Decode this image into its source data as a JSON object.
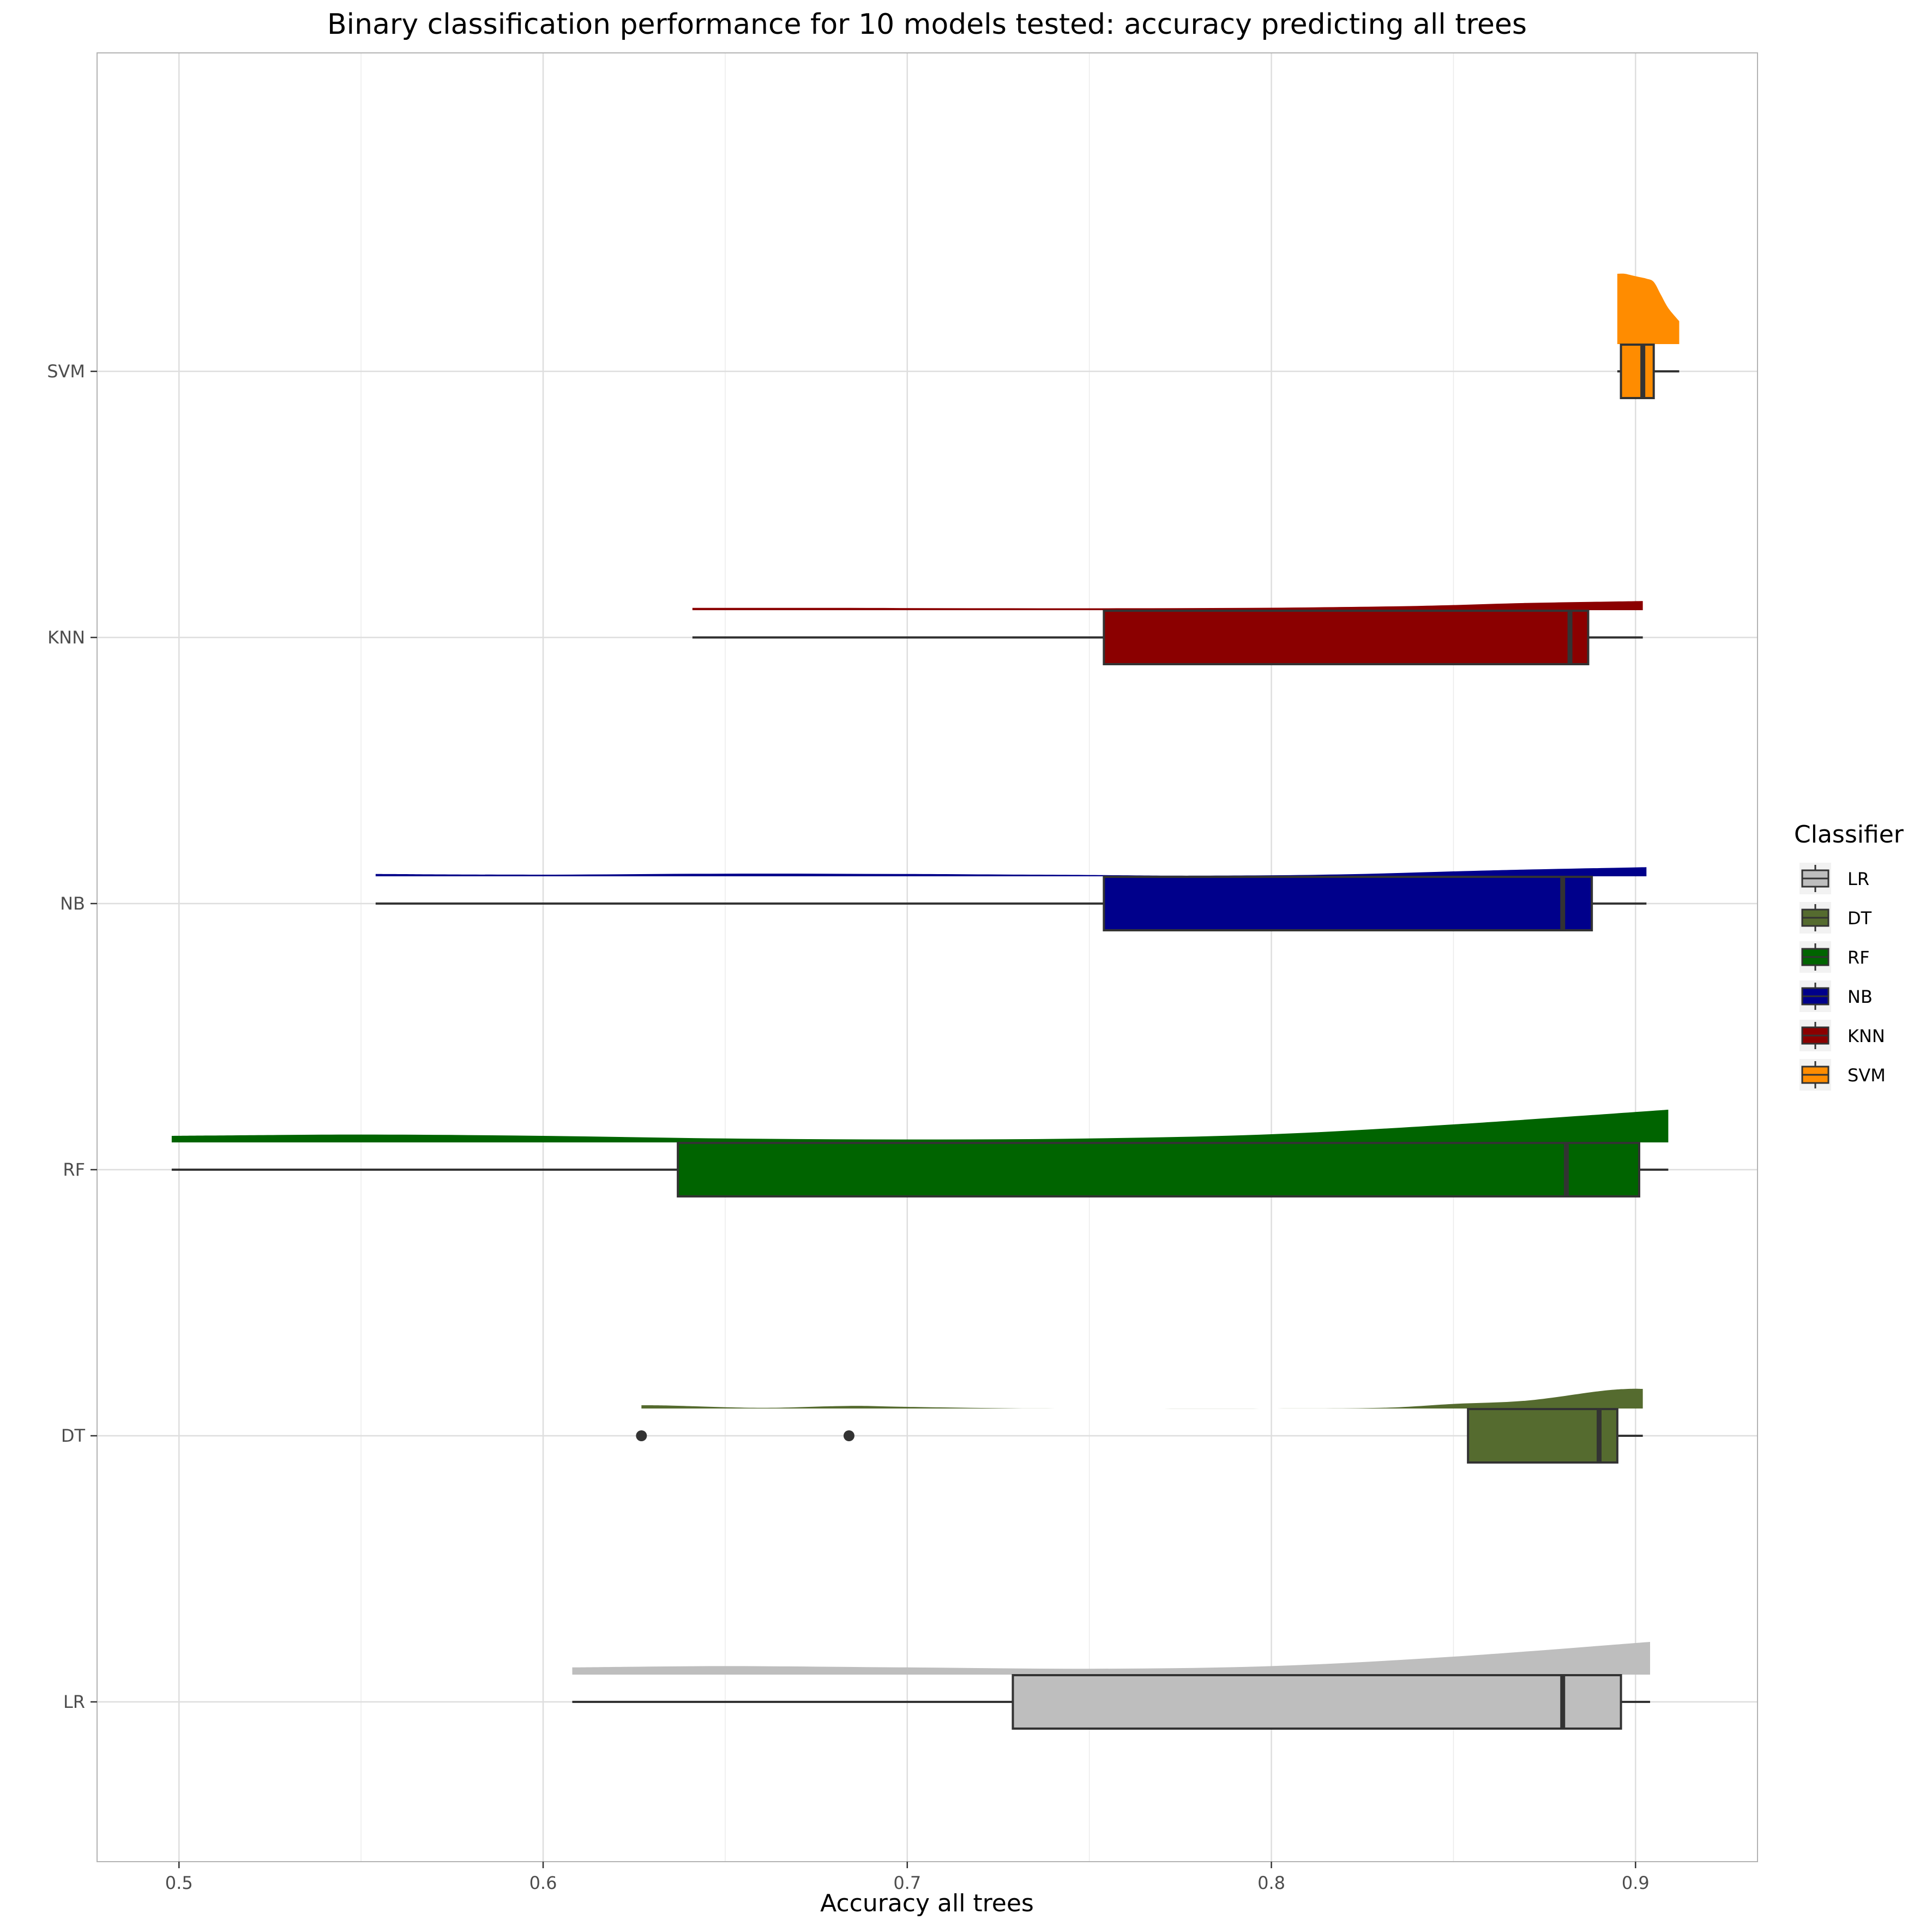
{
  "chart_data": {
    "type": "raincloud",
    "title": "Binary classification performance for 10 models tested: accuracy predicting all trees",
    "xlabel": "Accuracy all trees",
    "ylabel": "",
    "xlim": [
      0.4775,
      0.9335
    ],
    "x_ticks": [
      "0.5",
      "0.6",
      "0.7",
      "0.8",
      "0.9"
    ],
    "categories": [
      "LR",
      "DT",
      "RF",
      "NB",
      "KNN",
      "SVM"
    ],
    "grid": true,
    "legend": {
      "title": "Classifier",
      "placement": "right",
      "entries": [
        "LR",
        "DT",
        "RF",
        "NB",
        "KNN",
        "SVM"
      ]
    },
    "series": [
      {
        "name": "LR",
        "color": "#BEBEBE",
        "whisker_low": 0.608,
        "q1": 0.729,
        "median": 0.88,
        "q3": 0.896,
        "whisker_high": 0.904,
        "outliers": [],
        "density": [
          [
            0.608,
            0.22
          ],
          [
            0.65,
            0.26
          ],
          [
            0.7,
            0.22
          ],
          [
            0.75,
            0.18
          ],
          [
            0.8,
            0.26
          ],
          [
            0.85,
            0.55
          ],
          [
            0.904,
            1.0
          ]
        ]
      },
      {
        "name": "DT",
        "color": "#556B2F",
        "whisker_low": 0.854,
        "q1": 0.854,
        "median": 0.89,
        "q3": 0.895,
        "whisker_high": 0.902,
        "outliers": [
          0.627,
          0.684
        ],
        "density": [
          [
            0.627,
            0.1
          ],
          [
            0.635,
            0.09
          ],
          [
            0.66,
            0.02
          ],
          [
            0.684,
            0.08
          ],
          [
            0.7,
            0.05
          ],
          [
            0.73,
            0.005
          ],
          [
            0.76,
            0.0
          ],
          [
            0.8,
            0.0
          ],
          [
            0.83,
            0.02
          ],
          [
            0.85,
            0.14
          ],
          [
            0.87,
            0.24
          ],
          [
            0.89,
            0.53
          ],
          [
            0.898,
            0.6
          ],
          [
            0.902,
            0.6
          ]
        ]
      },
      {
        "name": "RF",
        "color": "#006400",
        "whisker_low": 0.498,
        "q1": 0.637,
        "median": 0.881,
        "q3": 0.901,
        "whisker_high": 0.909,
        "outliers": [],
        "density": [
          [
            0.498,
            0.2
          ],
          [
            0.55,
            0.24
          ],
          [
            0.6,
            0.2
          ],
          [
            0.65,
            0.12
          ],
          [
            0.7,
            0.09
          ],
          [
            0.75,
            0.12
          ],
          [
            0.8,
            0.25
          ],
          [
            0.85,
            0.55
          ],
          [
            0.909,
            1.0
          ]
        ]
      },
      {
        "name": "NB",
        "color": "#00008B",
        "whisker_low": 0.554,
        "q1": 0.754,
        "median": 0.88,
        "q3": 0.888,
        "whisker_high": 0.903,
        "outliers": [],
        "density": [
          [
            0.554,
            0.07
          ],
          [
            0.6,
            0.05
          ],
          [
            0.65,
            0.08
          ],
          [
            0.7,
            0.07
          ],
          [
            0.75,
            0.04
          ],
          [
            0.78,
            0.02
          ],
          [
            0.82,
            0.06
          ],
          [
            0.86,
            0.18
          ],
          [
            0.903,
            0.28
          ]
        ]
      },
      {
        "name": "KNN",
        "color": "#8B0000",
        "whisker_low": 0.641,
        "q1": 0.754,
        "median": 0.882,
        "q3": 0.887,
        "whisker_high": 0.902,
        "outliers": [],
        "density": [
          [
            0.641,
            0.07
          ],
          [
            0.68,
            0.07
          ],
          [
            0.72,
            0.06
          ],
          [
            0.76,
            0.06
          ],
          [
            0.8,
            0.075
          ],
          [
            0.84,
            0.13
          ],
          [
            0.87,
            0.22
          ],
          [
            0.902,
            0.28
          ]
        ]
      },
      {
        "name": "SVM",
        "color": "#FF8C00",
        "whisker_low": 0.895,
        "q1": 0.896,
        "median": 0.902,
        "q3": 0.905,
        "whisker_high": 0.912,
        "outliers": [],
        "density": [
          [
            0.895,
            2.15
          ],
          [
            0.897,
            2.15
          ],
          [
            0.899,
            2.1
          ],
          [
            0.901,
            2.05
          ],
          [
            0.903,
            2.0
          ],
          [
            0.905,
            1.9
          ],
          [
            0.907,
            1.5
          ],
          [
            0.909,
            1.1
          ],
          [
            0.912,
            0.7
          ]
        ]
      }
    ]
  }
}
